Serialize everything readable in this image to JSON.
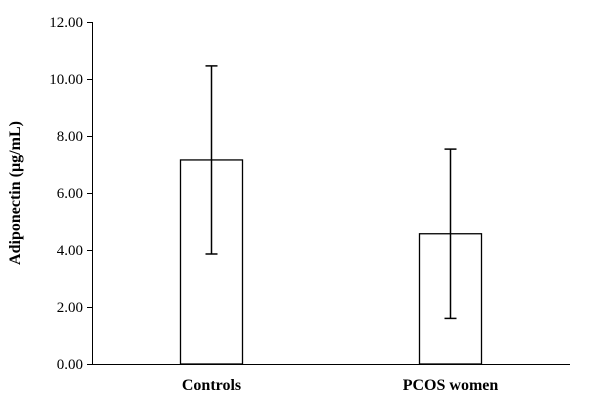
{
  "chart_data": {
    "type": "bar",
    "categories": [
      "Controls",
      "PCOS women"
    ],
    "values": [
      7.16,
      4.57
    ],
    "error": [
      3.3,
      2.97
    ],
    "xlabel": "",
    "ylabel": "Adiponectin (µg/mL)",
    "ylim": [
      0,
      12
    ],
    "yticks": [
      0,
      2,
      4,
      6,
      8,
      10,
      12
    ],
    "ytick_labels": [
      "0.00",
      "2.00",
      "4.00",
      "6.00",
      "8.00",
      "10.00",
      "12.00"
    ],
    "grid": false,
    "legend": "none",
    "bar_fill": "#ffffff",
    "bar_stroke": "#000000"
  }
}
